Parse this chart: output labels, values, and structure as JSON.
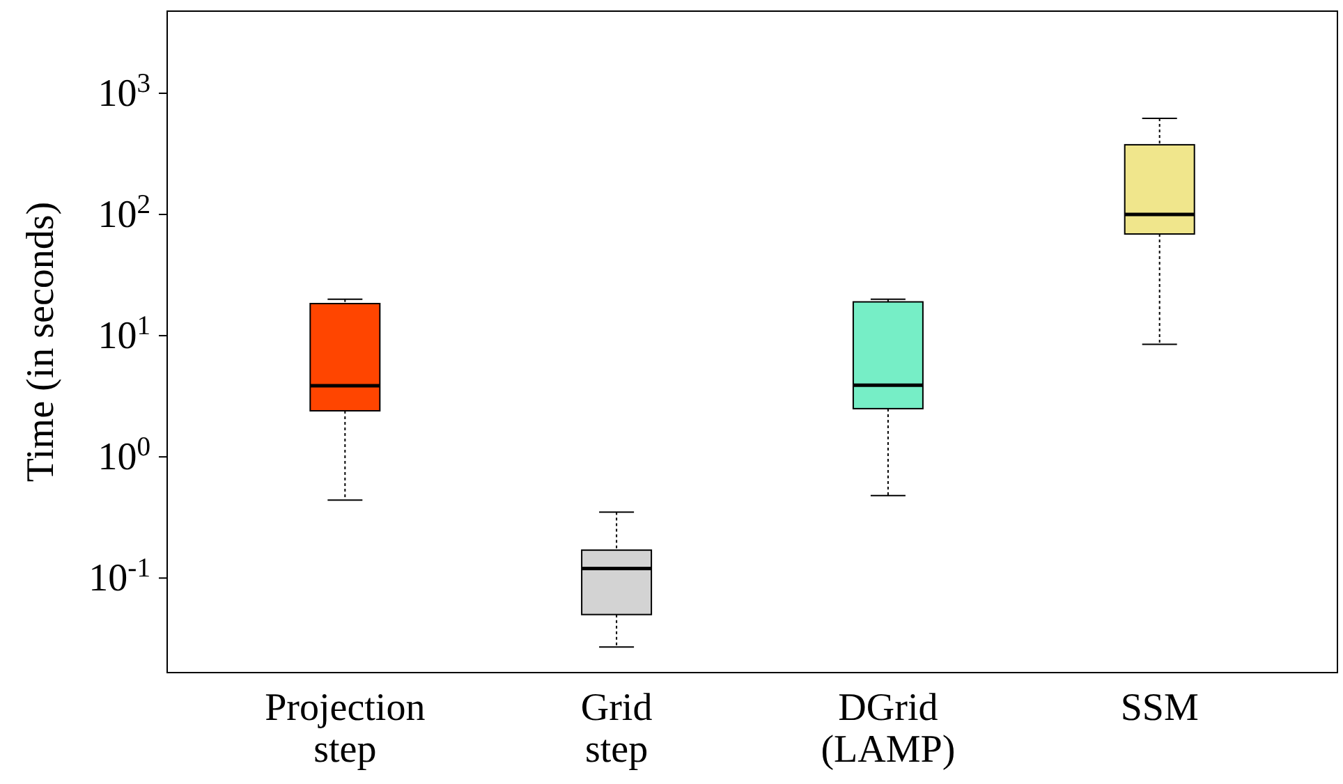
{
  "chart_data": {
    "type": "box",
    "ylabel": "Time (in seconds)",
    "log": true,
    "categories": [
      "Projection\nstep",
      "Grid\nstep",
      "DGrid\n(LAMP)",
      "SSM"
    ],
    "colors": [
      "#ff4500",
      "#d3d3d3",
      "#76eec6",
      "#f0e68c"
    ],
    "boxes": [
      {
        "low": 0.44,
        "q1": 2.4,
        "median": 3.86,
        "q3": 18.4,
        "high": 20
      },
      {
        "low": 0.027,
        "q1": 0.05,
        "median": 0.12,
        "q3": 0.17,
        "high": 0.35
      },
      {
        "low": 0.48,
        "q1": 2.5,
        "median": 3.9,
        "q3": 19,
        "high": 20
      },
      {
        "low": 8.5,
        "q1": 69,
        "median": 100,
        "q3": 376,
        "high": 620
      }
    ],
    "ylim": [
      0.0166,
      4760
    ],
    "yticks": [
      {
        "value": 0.1,
        "label": "10$^{-1}$"
      },
      {
        "value": 1,
        "label": "10$^{0}$"
      },
      {
        "value": 10,
        "label": "10$^{1}$"
      },
      {
        "value": 100,
        "label": "10$^{2}$"
      },
      {
        "value": 1000,
        "label": "10$^{3}$"
      }
    ],
    "grid": false
  }
}
